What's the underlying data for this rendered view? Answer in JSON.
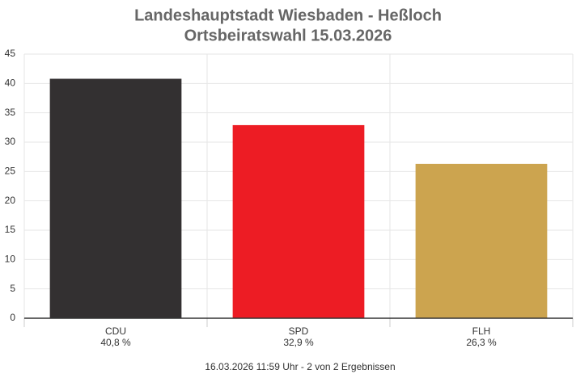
{
  "chart_data": {
    "type": "bar",
    "title": "Landeshauptstadt Wiesbaden - Heßloch",
    "subtitle": "Ortsbeiratswahl 15.03.2026",
    "categories": [
      "CDU",
      "SPD",
      "FLH"
    ],
    "values": [
      40.8,
      32.9,
      26.3
    ],
    "value_labels": [
      "40,8 %",
      "32,9 %",
      "26,3 %"
    ],
    "colors": [
      "#333031",
      "#ed1c24",
      "#cca44f"
    ],
    "ylim": [
      0,
      45
    ],
    "yticks": [
      0,
      5,
      10,
      15,
      20,
      25,
      30,
      35,
      40,
      45
    ],
    "grid": true,
    "caption": "16.03.2026 11:59 Uhr - 2 von 2 Ergebnissen"
  }
}
